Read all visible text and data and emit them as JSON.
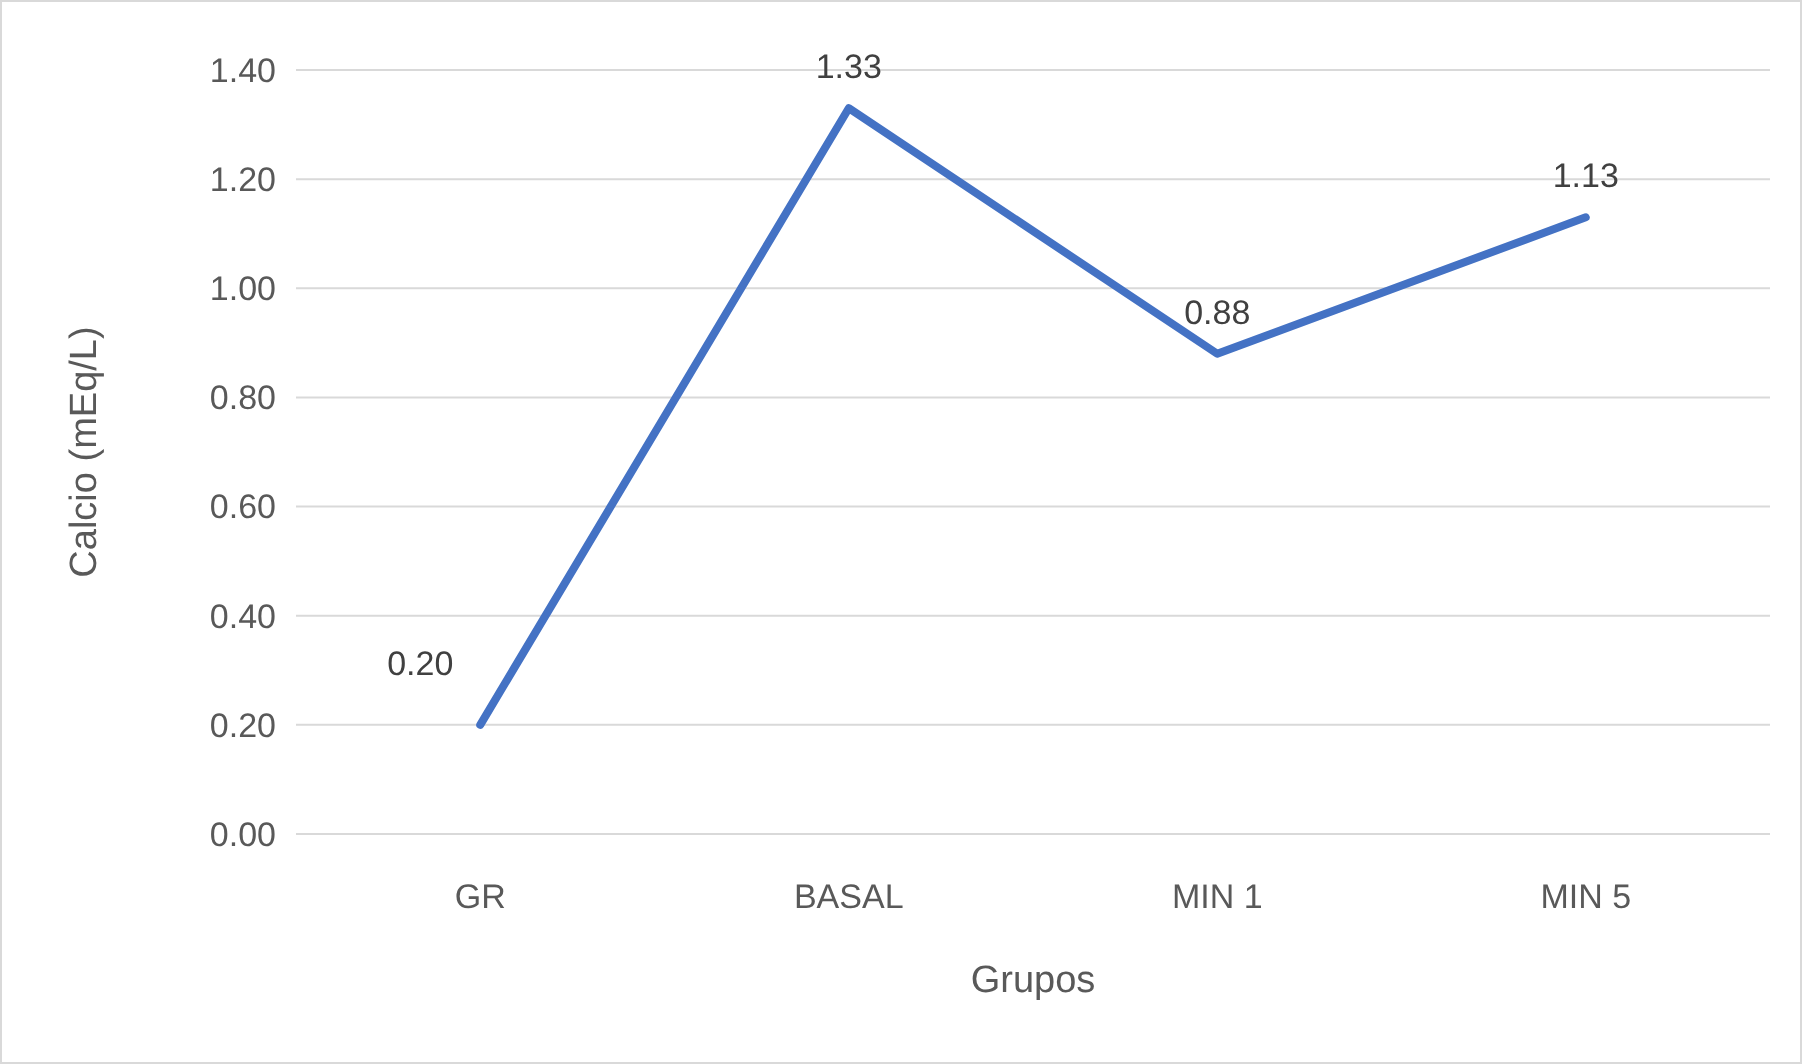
{
  "chart_data": {
    "type": "line",
    "xlabel": "Grupos",
    "ylabel": "Calcio (mEq/L)",
    "categories": [
      "GR",
      "BASAL",
      "MIN 1",
      "MIN 5"
    ],
    "series": [
      {
        "color": "#4472c4",
        "values": [
          0.2,
          1.33,
          0.88,
          1.13
        ],
        "value_labels": [
          "0.20",
          "1.33",
          "0.88",
          "1.13"
        ]
      }
    ],
    "ylim": [
      0,
      1.4
    ],
    "yticks": [
      {
        "value": 0,
        "label": "0.00"
      },
      {
        "value": 0.2,
        "label": "0.20"
      },
      {
        "value": 0.4,
        "label": "0.40"
      },
      {
        "value": 0.6,
        "label": "0.60"
      },
      {
        "value": 0.8,
        "label": "0.80"
      },
      {
        "value": 1,
        "label": "1.00"
      },
      {
        "value": 1.2,
        "label": "1.20"
      },
      {
        "value": 1.4,
        "label": "1.40"
      }
    ],
    "grid": "y",
    "marker": "none",
    "line_style": "solid"
  }
}
